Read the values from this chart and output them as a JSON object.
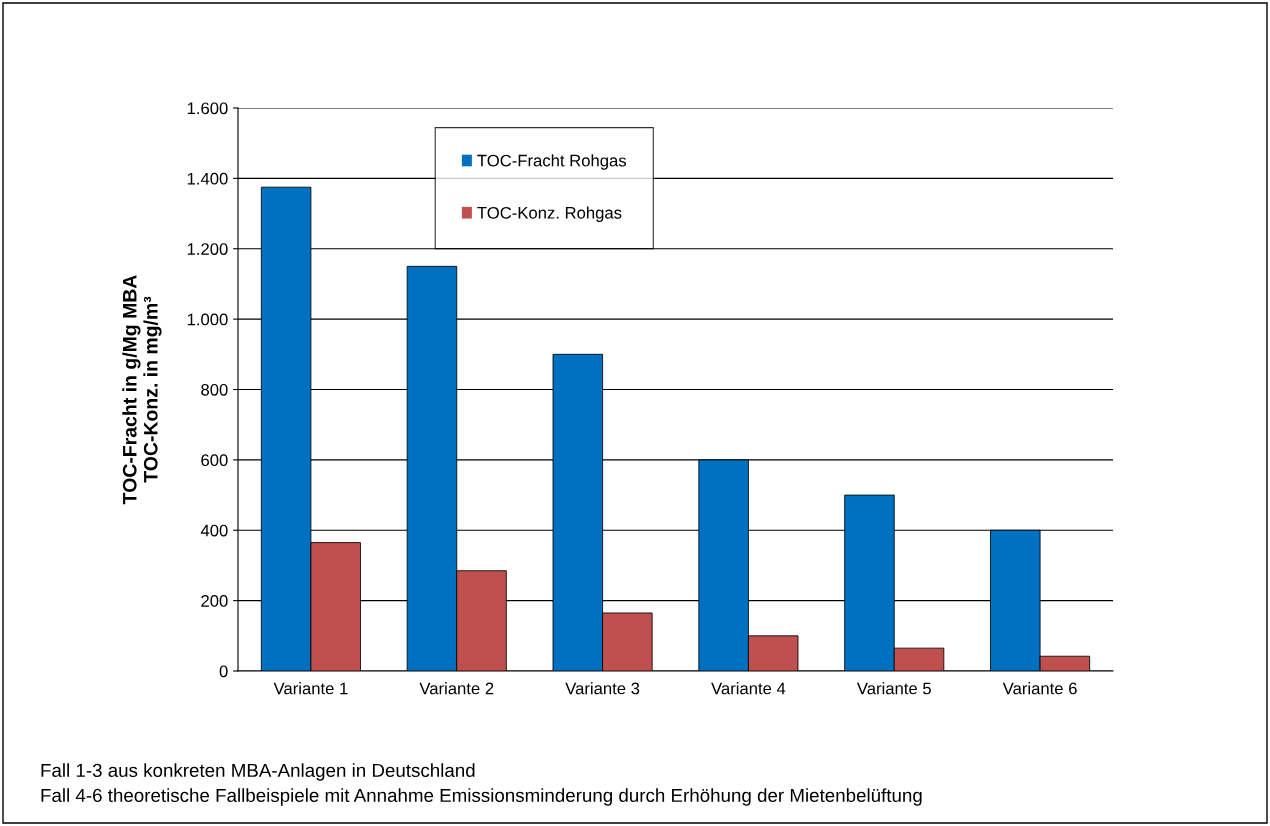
{
  "chart_data": {
    "type": "bar",
    "ylabel": "TOC-Fracht in g/Mg MBA\nTOC-Konz. in mg/m³",
    "categories": [
      "Variante 1",
      "Variante 2",
      "Variante 3",
      "Variante 4",
      "Variante 5",
      "Variante 6"
    ],
    "series": [
      {
        "name": "TOC-Fracht Rohgas",
        "color": "#0070c0",
        "values": [
          1375,
          1150,
          900,
          600,
          500,
          400
        ]
      },
      {
        "name": "TOC-Konz. Rohgas",
        "color": "#c0504d",
        "values": [
          365,
          285,
          165,
          100,
          65,
          42
        ]
      }
    ],
    "ylim": [
      0,
      1600
    ],
    "yticks": [
      0,
      {
        "value": 200,
        "label": "200"
      },
      {
        "value": 400,
        "label": "400"
      },
      {
        "value": 600,
        "label": "600"
      },
      {
        "value": 800,
        "label": "800"
      },
      {
        "value": 1000,
        "label": "1.000"
      },
      {
        "value": 1200,
        "label": "1.200"
      },
      {
        "value": 1400,
        "label": "1.400"
      },
      {
        "value": 1600,
        "label": "1.600"
      }
    ],
    "grid": "y",
    "legend": "top",
    "annotations": [
      "Fall 1-3 aus konkreten MBA-Anlagen in Deutschland",
      "Fall 4-6 theoretische Fallbeispiele mit Annahme Emissionsminderung durch Erhöhung der Mietenbelüftung"
    ]
  }
}
